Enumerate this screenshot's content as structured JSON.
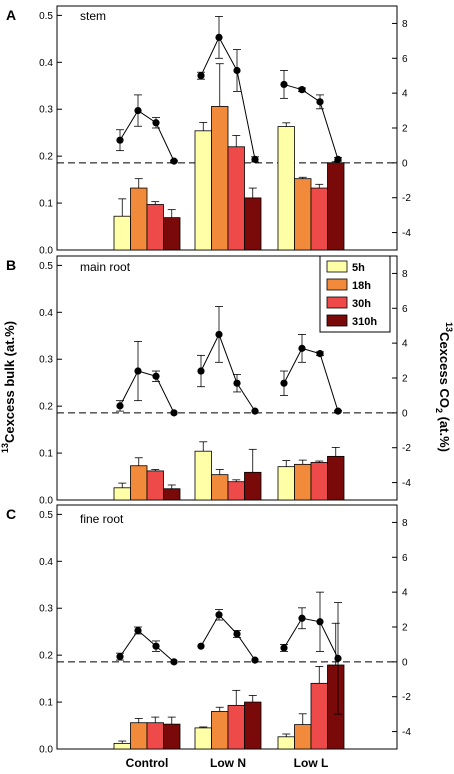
{
  "chart_data": {
    "type": "bar",
    "categories": [
      "Control",
      "Low N",
      "Low L"
    ],
    "series_names": [
      "5h",
      "18h",
      "30h",
      "310h"
    ],
    "colors": [
      "#ffffa8",
      "#f28a3c",
      "#ef4a4a",
      "#7a0a0a"
    ],
    "y_left": {
      "label_superscript": "13",
      "label_main": "Cexcess bulk (at.%)",
      "lim": [
        0,
        0.52
      ],
      "ticks": [
        0.0,
        0.1,
        0.2,
        0.3,
        0.4,
        0.5
      ],
      "tick_labels": [
        "0.0",
        "0.1",
        "0.2",
        "0.3",
        "0.4",
        "0.5"
      ]
    },
    "y_right": {
      "label_superscript": "13",
      "label_main": "Cexcess CO",
      "label_subscript": "2",
      "label_tail": " (at.%)",
      "lim": [
        -5,
        9
      ],
      "ticks": [
        -4,
        -2,
        0,
        2,
        4,
        6,
        8
      ],
      "tick_labels": [
        "-4",
        "-2",
        "0",
        "2",
        "4",
        "6",
        "8"
      ],
      "zero_line": 0
    },
    "legend": {
      "entries": [
        "5h",
        "18h",
        "30h",
        "310h"
      ],
      "position": "top-right of panel B"
    },
    "panels": [
      {
        "letter": "A",
        "title": "stem",
        "bars": {
          "values": [
            [
              0.072,
              0.132,
              0.097,
              0.069
            ],
            [
              0.254,
              0.306,
              0.22,
              0.111
            ],
            [
              0.263,
              0.152,
              0.132,
              0.186
            ]
          ],
          "errors": [
            [
              0.037,
              0.02,
              0.006,
              0.017
            ],
            [
              0.018,
              0.091,
              0.024,
              0.021
            ],
            [
              0.008,
              0.003,
              0.008,
              0.002
            ]
          ]
        },
        "co2": {
          "values": [
            [
              1.3,
              3.0,
              2.3,
              0.1
            ],
            [
              5.0,
              7.2,
              5.3,
              0.2
            ],
            [
              4.5,
              4.2,
              3.5,
              0.2
            ]
          ],
          "errors": [
            [
              0.6,
              0.9,
              0.3,
              0.05
            ],
            [
              0.2,
              1.2,
              1.2,
              0.15
            ],
            [
              0.8,
              0.1,
              0.4,
              0.1
            ]
          ]
        }
      },
      {
        "letter": "B",
        "title": "main root",
        "bars": {
          "values": [
            [
              0.026,
              0.073,
              0.062,
              0.024
            ],
            [
              0.104,
              0.054,
              0.039,
              0.059
            ],
            [
              0.071,
              0.076,
              0.08,
              0.093
            ]
          ],
          "errors": [
            [
              0.01,
              0.017,
              0.003,
              0.008
            ],
            [
              0.02,
              0.011,
              0.004,
              0.049
            ],
            [
              0.013,
              0.009,
              0.003,
              0.019
            ]
          ]
        },
        "co2": {
          "values": [
            [
              0.4,
              2.4,
              2.1,
              0.0
            ],
            [
              2.4,
              4.5,
              1.7,
              0.1
            ],
            [
              1.7,
              3.7,
              3.4,
              0.1
            ]
          ],
          "errors": [
            [
              0.3,
              1.7,
              0.3,
              0.0
            ],
            [
              0.9,
              1.6,
              0.5,
              0.0
            ],
            [
              0.7,
              0.8,
              0.1,
              0.05
            ]
          ]
        }
      },
      {
        "letter": "C",
        "title": "fine root",
        "bars": {
          "values": [
            [
              0.012,
              0.056,
              0.056,
              0.053
            ],
            [
              0.045,
              0.08,
              0.093,
              0.1
            ],
            [
              0.026,
              0.052,
              0.14,
              0.179
            ]
          ],
          "errors": [
            [
              0.005,
              0.009,
              0.012,
              0.015
            ],
            [
              0.002,
              0.009,
              0.032,
              0.014
            ],
            [
              0.006,
              0.023,
              0.036,
              0.089
            ]
          ]
        },
        "co2": {
          "values": [
            [
              0.3,
              1.8,
              0.9,
              0.0
            ],
            [
              0.9,
              2.7,
              1.6,
              0.1
            ],
            [
              0.8,
              2.5,
              2.3,
              0.2
            ]
          ],
          "errors": [
            [
              0.2,
              0.2,
              0.3,
              0.0
            ],
            [
              0.0,
              0.3,
              0.2,
              0.0
            ],
            [
              0.2,
              0.6,
              1.7,
              3.2
            ]
          ]
        }
      }
    ]
  }
}
